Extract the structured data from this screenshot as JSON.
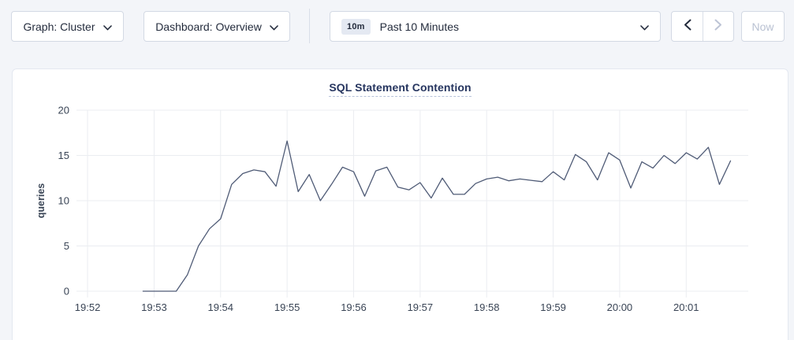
{
  "toolbar": {
    "graph_dropdown": "Graph: Cluster",
    "dashboard_dropdown": "Dashboard: Overview",
    "time_range": {
      "badge": "10m",
      "label": "Past 10 Minutes"
    },
    "now_button": "Now",
    "icons": {
      "graph_dropdown": "chevron-down",
      "dashboard_dropdown": "chevron-down",
      "time_range": "chevron-down",
      "prev_range": "chevron-left",
      "next_range": "chevron-right"
    },
    "states": {
      "prev_range": "enabled",
      "next_range": "disabled",
      "now_button": "disabled"
    }
  },
  "chart_data": {
    "type": "line",
    "title": "SQL Statement Contention",
    "ylabel": "queries",
    "xlabel": "",
    "ylim": [
      0,
      20
    ],
    "y_ticks": [
      0,
      5,
      10,
      15,
      20
    ],
    "grid": true,
    "legend_position": "none",
    "x_domain_sec": [
      0,
      606
    ],
    "x_ticks": [
      {
        "label": "19:52",
        "sec": 10
      },
      {
        "label": "19:53",
        "sec": 70
      },
      {
        "label": "19:54",
        "sec": 130
      },
      {
        "label": "19:55",
        "sec": 190
      },
      {
        "label": "19:56",
        "sec": 250
      },
      {
        "label": "19:57",
        "sec": 310
      },
      {
        "label": "19:58",
        "sec": 370
      },
      {
        "label": "19:59",
        "sec": 430
      },
      {
        "label": "20:00",
        "sec": 490
      },
      {
        "label": "20:01",
        "sec": 550
      }
    ],
    "series": [
      {
        "name": "queries",
        "start_time": "19:52:50",
        "start_sec": 60,
        "interval_sec": 10,
        "values": [
          0,
          0,
          0,
          0,
          1.8,
          5.0,
          6.9,
          8.0,
          11.8,
          13.0,
          13.4,
          13.2,
          11.6,
          16.6,
          11.0,
          12.9,
          10.0,
          11.8,
          13.7,
          13.2,
          10.5,
          13.3,
          13.7,
          11.5,
          11.2,
          12.0,
          10.3,
          12.5,
          10.7,
          10.7,
          11.9,
          12.4,
          12.6,
          12.2,
          12.4,
          12.25,
          12.1,
          13.2,
          12.3,
          15.1,
          14.3,
          12.3,
          15.3,
          14.5,
          11.4,
          14.3,
          13.6,
          15.0,
          14.1,
          15.3,
          14.6,
          15.9,
          11.8,
          14.4
        ]
      }
    ],
    "colors": {
      "line": "#4f5b76",
      "grid": "#ebedf1",
      "tick_text": "#394455",
      "title": "#26355f"
    }
  }
}
